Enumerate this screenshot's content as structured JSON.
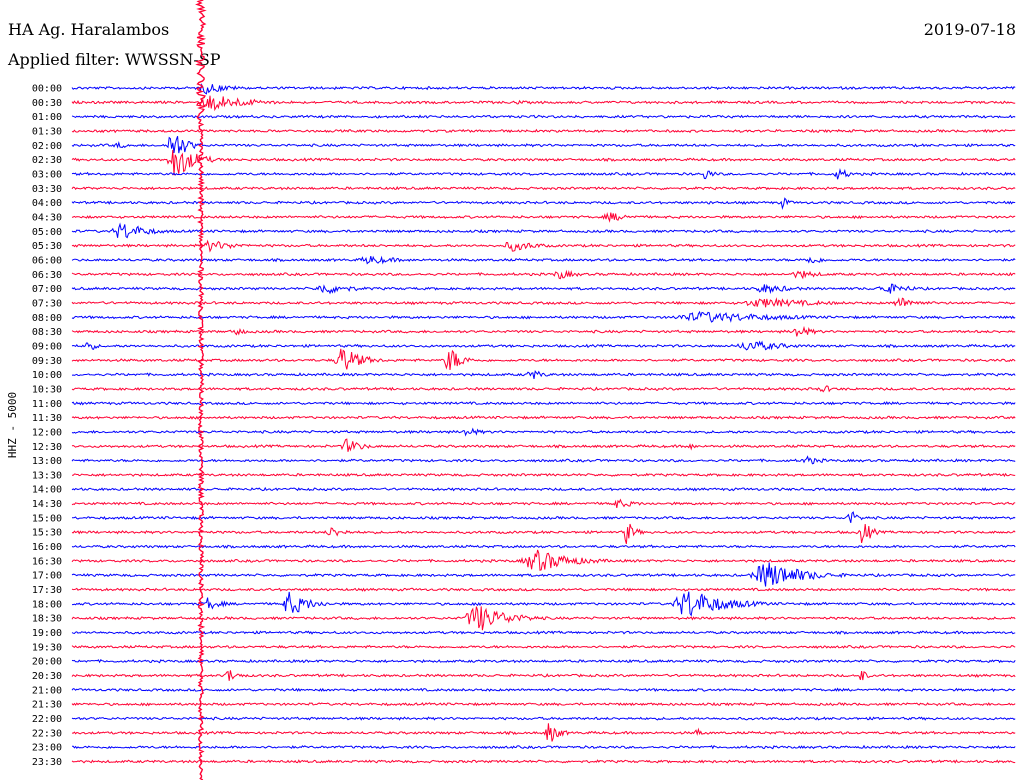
{
  "header": {
    "station": "HA Ag. Haralambos",
    "filter": "Applied filter: WWSSN-SP",
    "date": "2019-07-18"
  },
  "chart_data": {
    "type": "helicorder",
    "channel_label": "HHZ - 5000",
    "row_interval_minutes": 30,
    "colors": [
      "#0000ff",
      "#ff0033"
    ],
    "rows": [
      {
        "time": "00:00"
      },
      {
        "time": "00:30"
      },
      {
        "time": "01:00"
      },
      {
        "time": "01:30"
      },
      {
        "time": "02:00"
      },
      {
        "time": "02:30"
      },
      {
        "time": "03:00"
      },
      {
        "time": "03:30"
      },
      {
        "time": "04:00"
      },
      {
        "time": "04:30"
      },
      {
        "time": "05:00"
      },
      {
        "time": "05:30"
      },
      {
        "time": "06:00"
      },
      {
        "time": "06:30"
      },
      {
        "time": "07:00"
      },
      {
        "time": "07:30"
      },
      {
        "time": "08:00"
      },
      {
        "time": "08:30"
      },
      {
        "time": "09:00"
      },
      {
        "time": "09:30"
      },
      {
        "time": "10:00"
      },
      {
        "time": "10:30"
      },
      {
        "time": "11:00"
      },
      {
        "time": "11:30"
      },
      {
        "time": "12:00"
      },
      {
        "time": "12:30"
      },
      {
        "time": "13:00"
      },
      {
        "time": "13:30"
      },
      {
        "time": "14:00"
      },
      {
        "time": "14:30"
      },
      {
        "time": "15:00"
      },
      {
        "time": "15:30"
      },
      {
        "time": "16:00"
      },
      {
        "time": "16:30"
      },
      {
        "time": "17:00"
      },
      {
        "time": "17:30"
      },
      {
        "time": "18:00"
      },
      {
        "time": "18:30"
      },
      {
        "time": "19:00"
      },
      {
        "time": "19:30"
      },
      {
        "time": "20:00"
      },
      {
        "time": "20:30"
      },
      {
        "time": "21:00"
      },
      {
        "time": "21:30"
      },
      {
        "time": "22:00"
      },
      {
        "time": "22:30"
      },
      {
        "time": "23:00"
      },
      {
        "time": "23:30"
      }
    ],
    "events": [
      {
        "row": 0,
        "start_min": 3.9,
        "duration_min": 2.4,
        "amp": 6
      },
      {
        "row": 1,
        "start_min": 3.9,
        "duration_min": 3.6,
        "amp": 9
      },
      {
        "row": 4,
        "start_min": 3.0,
        "duration_min": 1.2,
        "amp": 20
      },
      {
        "row": 5,
        "start_min": 3.0,
        "duration_min": 1.8,
        "amp": 20
      },
      {
        "row": 10,
        "start_min": 1.2,
        "duration_min": 2.4,
        "amp": 10
      },
      {
        "row": 4,
        "start_min": 1.2,
        "duration_min": 1.8,
        "amp": 3
      },
      {
        "row": 1,
        "start_min": 14.0,
        "duration_min": 0.8,
        "amp": 3
      },
      {
        "row": 8,
        "start_min": 22.5,
        "duration_min": 0.6,
        "amp": 7
      },
      {
        "row": 6,
        "start_min": 20.0,
        "duration_min": 0.8,
        "amp": 7
      },
      {
        "row": 6,
        "start_min": 24.2,
        "duration_min": 1.0,
        "amp": 7
      },
      {
        "row": 8,
        "start_min": 20.1,
        "duration_min": 1.5,
        "amp": 2
      },
      {
        "row": 9,
        "start_min": 16.8,
        "duration_min": 2.0,
        "amp": 5
      },
      {
        "row": 11,
        "start_min": 4.0,
        "duration_min": 2.5,
        "amp": 6
      },
      {
        "row": 11,
        "start_min": 13.6,
        "duration_min": 2.5,
        "amp": 6
      },
      {
        "row": 12,
        "start_min": 9.0,
        "duration_min": 2.8,
        "amp": 5
      },
      {
        "row": 12,
        "start_min": 23.2,
        "duration_min": 1.5,
        "amp": 5
      },
      {
        "row": 13,
        "start_min": 15.2,
        "duration_min": 1.8,
        "amp": 5
      },
      {
        "row": 13,
        "start_min": 22.8,
        "duration_min": 2.0,
        "amp": 5
      },
      {
        "row": 14,
        "start_min": 7.6,
        "duration_min": 2.8,
        "amp": 6
      },
      {
        "row": 14,
        "start_min": 25.5,
        "duration_min": 2.4,
        "amp": 6
      },
      {
        "row": 14,
        "start_min": 21.5,
        "duration_min": 3.0,
        "amp": 5
      },
      {
        "row": 15,
        "start_min": 21.0,
        "duration_min": 6.0,
        "amp": 5
      },
      {
        "row": 15,
        "start_min": 26.0,
        "duration_min": 2.0,
        "amp": 6
      },
      {
        "row": 16,
        "start_min": 18.8,
        "duration_min": 8.0,
        "amp": 6
      },
      {
        "row": 17,
        "start_min": 5.0,
        "duration_min": 1.0,
        "amp": 5
      },
      {
        "row": 17,
        "start_min": 22.8,
        "duration_min": 1.5,
        "amp": 7
      },
      {
        "row": 18,
        "start_min": 0.4,
        "duration_min": 0.6,
        "amp": 10
      },
      {
        "row": 18,
        "start_min": 21.0,
        "duration_min": 3.5,
        "amp": 6
      },
      {
        "row": 19,
        "start_min": 8.3,
        "duration_min": 1.8,
        "amp": 15
      },
      {
        "row": 19,
        "start_min": 11.8,
        "duration_min": 1.2,
        "amp": 15
      },
      {
        "row": 20,
        "start_min": 14.4,
        "duration_min": 1.2,
        "amp": 6
      },
      {
        "row": 21,
        "start_min": 23.7,
        "duration_min": 1.0,
        "amp": 5
      },
      {
        "row": 24,
        "start_min": 12.3,
        "duration_min": 1.5,
        "amp": 5
      },
      {
        "row": 25,
        "start_min": 8.5,
        "duration_min": 1.5,
        "amp": 8
      },
      {
        "row": 25,
        "start_min": 19.5,
        "duration_min": 0.6,
        "amp": 5
      },
      {
        "row": 26,
        "start_min": 23.1,
        "duration_min": 1.6,
        "amp": 5
      },
      {
        "row": 29,
        "start_min": 17.0,
        "duration_min": 2.0,
        "amp": 5
      },
      {
        "row": 30,
        "start_min": 24.6,
        "duration_min": 0.8,
        "amp": 9
      },
      {
        "row": 31,
        "start_min": 8.0,
        "duration_min": 1.5,
        "amp": 6
      },
      {
        "row": 31,
        "start_min": 17.5,
        "duration_min": 0.8,
        "amp": 13
      },
      {
        "row": 31,
        "start_min": 25.0,
        "duration_min": 0.8,
        "amp": 16
      },
      {
        "row": 33,
        "start_min": 14.2,
        "duration_min": 3.5,
        "amp": 12
      },
      {
        "row": 34,
        "start_min": 21.5,
        "duration_min": 3.6,
        "amp": 15
      },
      {
        "row": 36,
        "start_min": 4.1,
        "duration_min": 1.5,
        "amp": 6
      },
      {
        "row": 36,
        "start_min": 6.6,
        "duration_min": 2.0,
        "amp": 13
      },
      {
        "row": 36,
        "start_min": 19.0,
        "duration_min": 3.6,
        "amp": 16
      },
      {
        "row": 36,
        "start_min": 4.2,
        "duration_min": 0.8,
        "amp": 8
      },
      {
        "row": 37,
        "start_min": 12.4,
        "duration_min": 3.0,
        "amp": 15
      },
      {
        "row": 41,
        "start_min": 4.8,
        "duration_min": 1.0,
        "amp": 8
      },
      {
        "row": 41,
        "start_min": 25.0,
        "duration_min": 0.5,
        "amp": 9
      },
      {
        "row": 45,
        "start_min": 15.0,
        "duration_min": 1.0,
        "amp": 12
      },
      {
        "row": 45,
        "start_min": 19.8,
        "duration_min": 0.4,
        "amp": 8
      }
    ]
  }
}
